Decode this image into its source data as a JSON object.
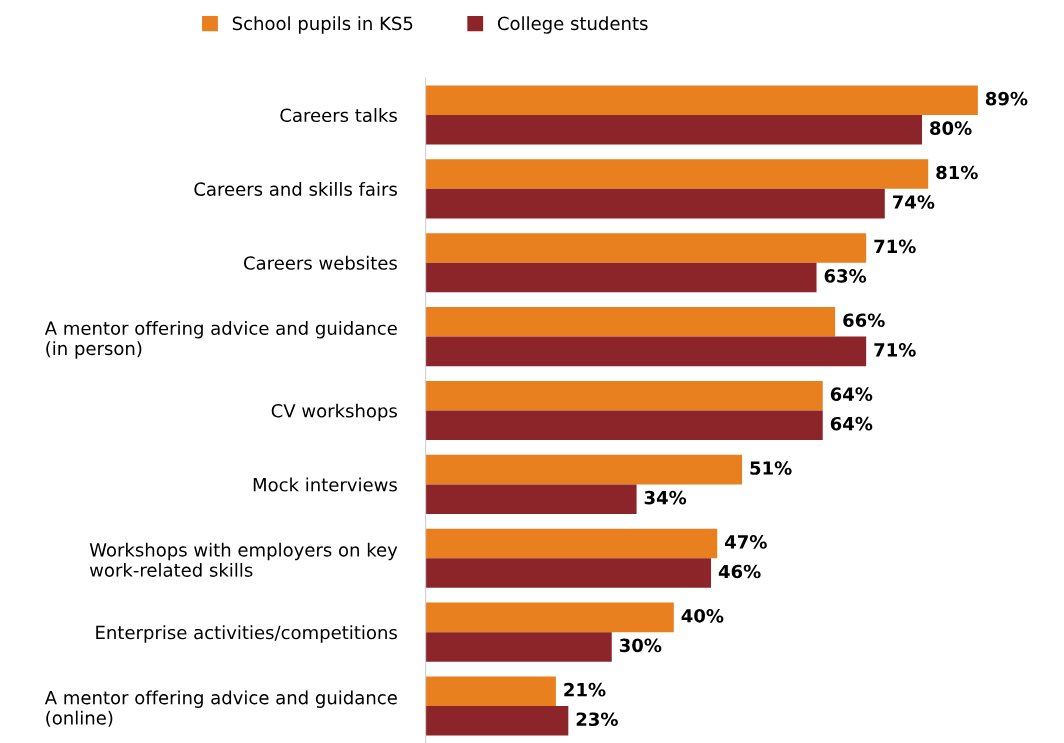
{
  "chart_data": {
    "type": "bar",
    "orientation": "horizontal",
    "legend": "top",
    "grid": false,
    "tick_labels": "y",
    "categories": [
      "Careers talks",
      "Careers and skills fairs",
      "Careers websites",
      "A mentor offering advice and guidance (in person)",
      "CV workshops",
      "Mock interviews",
      "Workshops with employers on key work-related skills",
      "Enterprise activities/competitions",
      "A mentor offering advice and guidance (online)"
    ],
    "series": [
      {
        "name": "School pupils in KS5",
        "color": "#e8801f",
        "values": [
          89,
          81,
          71,
          66,
          64,
          51,
          47,
          40,
          21
        ],
        "value_labels": [
          "89%",
          "81%",
          "71%",
          "66%",
          "64%",
          "51%",
          "47%",
          "40%",
          "21%"
        ]
      },
      {
        "name": "College students",
        "color": "#8b252a",
        "values": [
          80,
          74,
          63,
          71,
          64,
          34,
          46,
          30,
          23
        ],
        "value_labels": [
          "80%",
          "74%",
          "63%",
          "71%",
          "64%",
          "34%",
          "46%",
          "30%",
          "23%"
        ]
      }
    ]
  }
}
